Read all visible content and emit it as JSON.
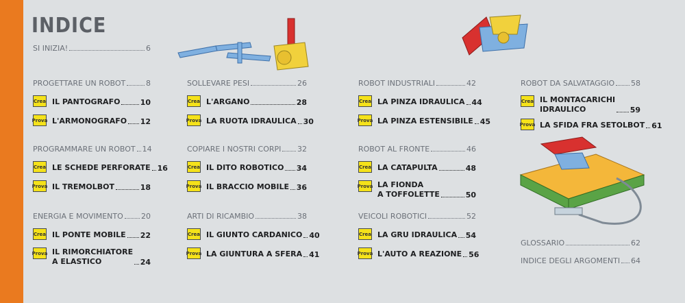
{
  "title": "INDICE",
  "intro": {
    "label": "SI INIZIA!",
    "page": 6
  },
  "columns": [
    {
      "sections": [
        {
          "label": "PROGETTARE UN ROBOT",
          "page": 8,
          "entries": [
            {
              "badge": "Crea",
              "lines": [
                "IL PANTOGRAFO"
              ],
              "page": 10
            },
            {
              "badge": "Prova",
              "lines": [
                "L'ARMONOGRAFO"
              ],
              "page": 12
            }
          ]
        },
        {
          "label": "PROGRAMMARE UN ROBOT",
          "page": 14,
          "entries": [
            {
              "badge": "Crea",
              "lines": [
                "LE SCHEDE PERFORATE"
              ],
              "page": 16
            },
            {
              "badge": "Prova",
              "lines": [
                "IL TREMOLBOT"
              ],
              "page": 18
            }
          ]
        },
        {
          "label": "ENERGIA E MOVIMENTO",
          "page": 20,
          "entries": [
            {
              "badge": "Crea",
              "lines": [
                "IL PONTE MOBILE"
              ],
              "page": 22
            },
            {
              "badge": "Prova",
              "lines": [
                "IL RIMORCHIATORE",
                "A ELASTICO"
              ],
              "page": 24
            }
          ]
        }
      ]
    },
    {
      "sections": [
        {
          "label": "SOLLEVARE PESI",
          "page": 26,
          "entries": [
            {
              "badge": "Crea",
              "lines": [
                "L'ARGANO"
              ],
              "page": 28
            },
            {
              "badge": "Prova",
              "lines": [
                "LA RUOTA IDRAULICA"
              ],
              "page": 30
            }
          ]
        },
        {
          "label": "COPIARE I NOSTRI CORPI",
          "page": 32,
          "entries": [
            {
              "badge": "Crea",
              "lines": [
                "IL DITO ROBOTICO"
              ],
              "page": 34
            },
            {
              "badge": "Prova",
              "lines": [
                "IL BRACCIO MOBILE"
              ],
              "page": 36
            }
          ]
        },
        {
          "label": "ARTI DI RICAMBIO",
          "page": 38,
          "entries": [
            {
              "badge": "Crea",
              "lines": [
                "IL GIUNTO CARDANICO"
              ],
              "page": 40
            },
            {
              "badge": "Prova",
              "lines": [
                "LA GIUNTURA A SFERA"
              ],
              "page": 41
            }
          ]
        }
      ]
    },
    {
      "sections": [
        {
          "label": "ROBOT INDUSTRIALI",
          "page": 42,
          "entries": [
            {
              "badge": "Crea",
              "lines": [
                "LA PINZA IDRAULICA"
              ],
              "page": 44
            },
            {
              "badge": "Prova",
              "lines": [
                "LA PINZA ESTENSIBILE"
              ],
              "page": 45
            }
          ]
        },
        {
          "label": "ROBOT AL FRONTE",
          "page": 46,
          "entries": [
            {
              "badge": "Crea",
              "lines": [
                "LA CATAPULTA"
              ],
              "page": 48
            },
            {
              "badge": "Prova",
              "lines": [
                "LA FIONDA",
                "A TOFFOLETTE"
              ],
              "page": 50
            }
          ]
        },
        {
          "label": "VEICOLI ROBOTICI",
          "page": 52,
          "entries": [
            {
              "badge": "Crea",
              "lines": [
                "LA GRU IDRAULICA"
              ],
              "page": 54
            },
            {
              "badge": "Prova",
              "lines": [
                "L'AUTO A REAZIONE"
              ],
              "page": 56
            }
          ]
        }
      ]
    },
    {
      "sections": [
        {
          "label": "ROBOT DA SALVATAGGIO",
          "page": 58,
          "entries": [
            {
              "badge": "Crea",
              "lines": [
                "IL MONTACARICHI",
                "IDRAULICO"
              ],
              "page": 59
            },
            {
              "badge": "Prova",
              "lines": [
                "LA SFIDA FRA SETOLBOT"
              ],
              "page": 61
            }
          ]
        }
      ]
    }
  ],
  "appendix": [
    {
      "label": "GLOSSARIO",
      "page": 62
    },
    {
      "label": "INDICE DEGLI ARGOMENTI",
      "page": 64
    }
  ]
}
